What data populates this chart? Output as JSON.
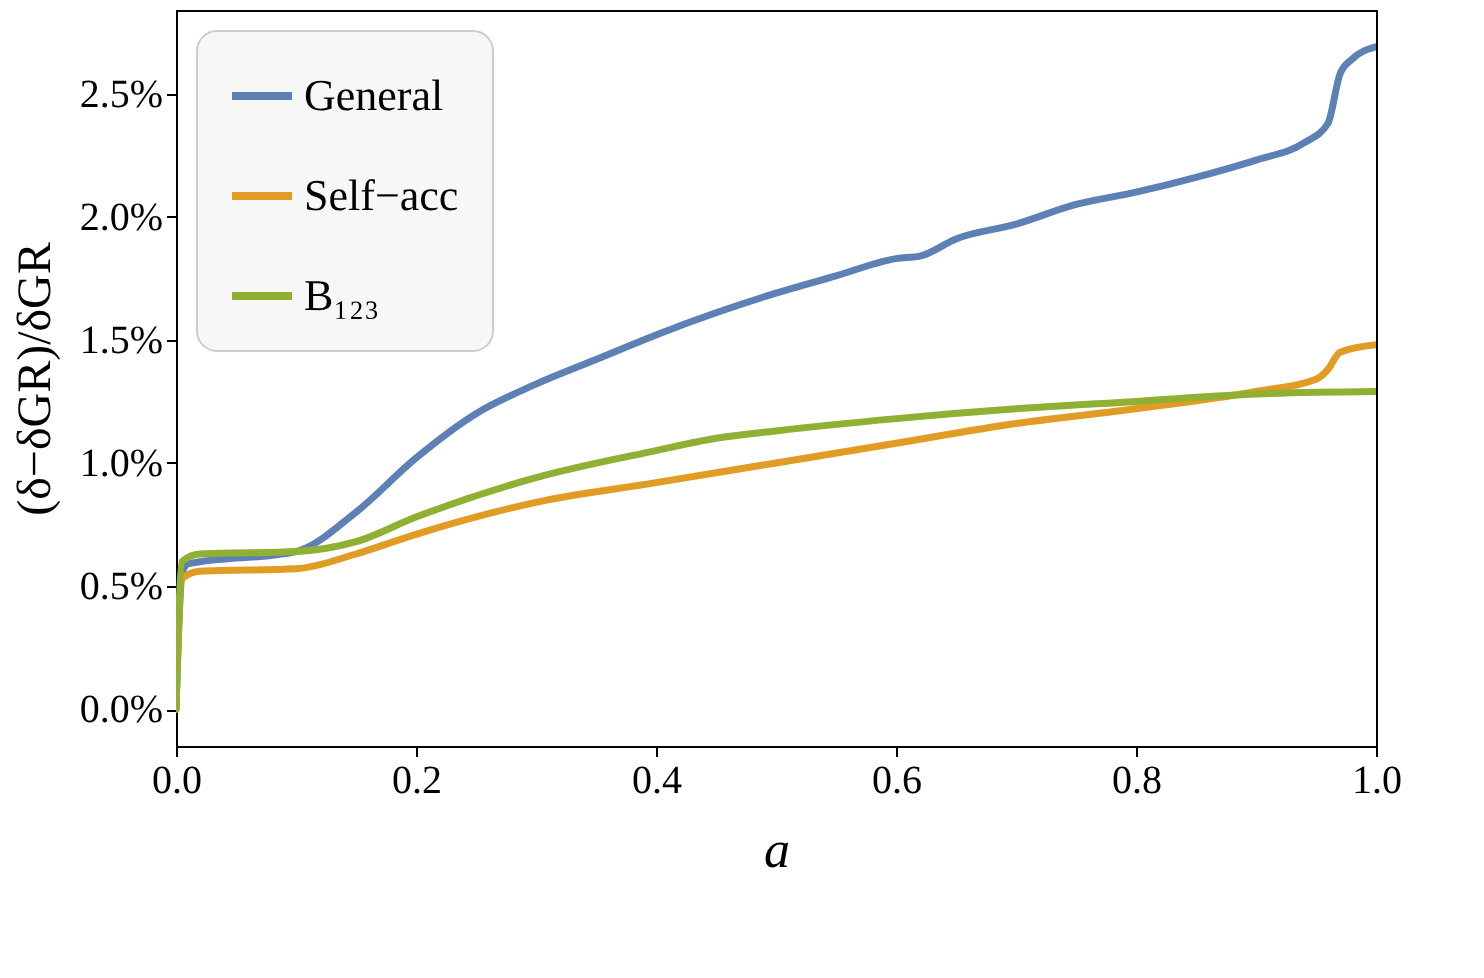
{
  "chart_data": {
    "type": "line",
    "xlabel": "a",
    "ylabel": "(δ−δGR)/δGR",
    "xlim": [
      0,
      1
    ],
    "ylim": [
      -0.15,
      2.84
    ],
    "xticks": [
      {
        "value": 0,
        "label": "0.0"
      },
      {
        "value": 0.2,
        "label": "0.2"
      },
      {
        "value": 0.4,
        "label": "0.4"
      },
      {
        "value": 0.6,
        "label": "0.6"
      },
      {
        "value": 0.8,
        "label": "0.8"
      },
      {
        "value": 1,
        "label": "1.0"
      }
    ],
    "yticks": [
      {
        "value": 0,
        "label": "0.0%"
      },
      {
        "value": 0.5,
        "label": "0.5%"
      },
      {
        "value": 1,
        "label": "1.0%"
      },
      {
        "value": 1.5,
        "label": "1.5%"
      },
      {
        "value": 2,
        "label": "2.0%"
      },
      {
        "value": 2.5,
        "label": "2.5%"
      }
    ],
    "grid": false,
    "legend": "top left",
    "line_style": "solid",
    "marker": "none",
    "series": [
      {
        "name": "General",
        "color": "#5d81b5",
        "x": [
          0,
          0.005,
          0.01,
          0.1,
          0.15,
          0.2,
          0.25,
          0.3,
          0.35,
          0.4,
          0.45,
          0.5,
          0.55,
          0.6,
          0.62,
          0.65,
          0.7,
          0.75,
          0.8,
          0.85,
          0.9,
          0.94,
          0.96,
          0.97,
          0.98,
          1.0
        ],
        "values": [
          0,
          0.55,
          0.59,
          0.64,
          0.8,
          1.02,
          1.2,
          1.32,
          1.42,
          1.52,
          1.61,
          1.69,
          1.76,
          1.83,
          1.84,
          1.91,
          1.97,
          2.05,
          2.1,
          2.16,
          2.23,
          2.3,
          2.38,
          2.58,
          2.64,
          2.69
        ]
      },
      {
        "name": "Self−acc",
        "color": "#e19c24",
        "x": [
          0,
          0.005,
          0.02,
          0.1,
          0.15,
          0.2,
          0.3,
          0.4,
          0.5,
          0.6,
          0.7,
          0.8,
          0.9,
          0.95,
          0.96,
          0.97,
          1.0
        ],
        "values": [
          0,
          0.53,
          0.56,
          0.57,
          0.63,
          0.71,
          0.84,
          0.92,
          1.0,
          1.08,
          1.16,
          1.22,
          1.29,
          1.34,
          1.38,
          1.45,
          1.48
        ]
      },
      {
        "name": "B₁₂₃",
        "color": "#8fb032",
        "x": [
          0,
          0.005,
          0.02,
          0.1,
          0.15,
          0.2,
          0.3,
          0.4,
          0.45,
          0.5,
          0.6,
          0.7,
          0.8,
          0.9,
          1.0
        ],
        "values": [
          0,
          0.6,
          0.63,
          0.64,
          0.68,
          0.78,
          0.94,
          1.05,
          1.1,
          1.13,
          1.18,
          1.22,
          1.25,
          1.28,
          1.29
        ]
      }
    ]
  }
}
